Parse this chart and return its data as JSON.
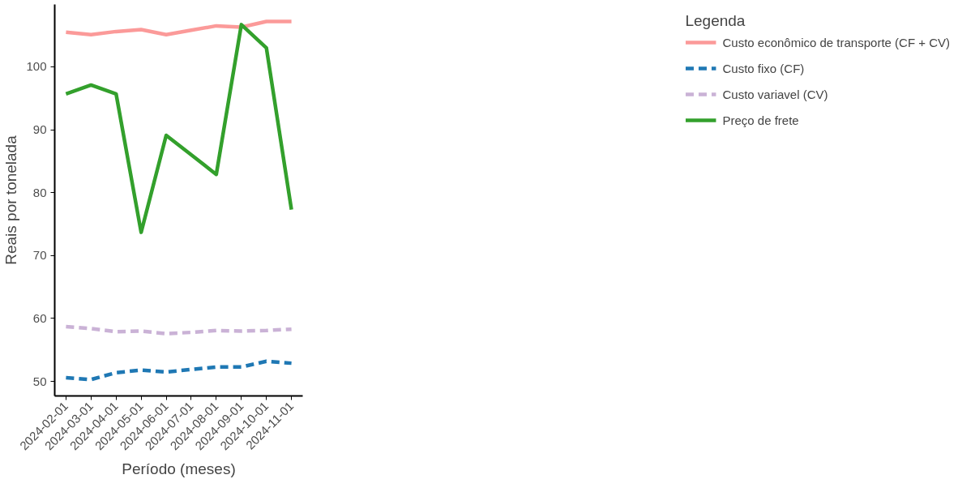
{
  "chart_data": {
    "type": "line",
    "xlabel": "Período (meses)",
    "ylabel": "Reais por tonelada",
    "legend_title": "Legenda",
    "legend": "right",
    "grid": false,
    "categories": [
      "2024-02-01",
      "2024-03-01",
      "2024-04-01",
      "2024-05-01",
      "2024-06-01",
      "2024-07-01",
      "2024-08-01",
      "2024-09-01",
      "2024-10-01",
      "2024-11-01"
    ],
    "ylim": [
      47.7,
      109.9
    ],
    "yticks": [
      50,
      60,
      70,
      80,
      90,
      100
    ],
    "series": [
      {
        "name": "Custo econômico de transporte (CF + CV)",
        "color": "#fb9a99",
        "line_style": "solid",
        "values": [
          105.5,
          105.1,
          105.6,
          105.9,
          105.1,
          105.8,
          106.5,
          106.3,
          107.2,
          107.2
        ]
      },
      {
        "name": "Custo fixo (CF)",
        "color": "#1f78b4",
        "line_style": "dashed",
        "values": [
          50.6,
          50.3,
          51.4,
          51.8,
          51.5,
          51.9,
          52.3,
          52.3,
          53.2,
          52.9
        ]
      },
      {
        "name": "Custo variavel (CV)",
        "color": "#cab2d6",
        "line_style": "dashed",
        "values": [
          58.7,
          58.4,
          57.9,
          58.0,
          57.6,
          57.8,
          58.1,
          58.0,
          58.1,
          58.3
        ]
      },
      {
        "name": "Preço de frete",
        "color": "#33a02c",
        "line_style": "solid",
        "values": [
          95.7,
          97.1,
          95.7,
          73.7,
          89.1,
          86.0,
          82.9,
          106.7,
          103.0,
          77.3
        ]
      }
    ]
  }
}
